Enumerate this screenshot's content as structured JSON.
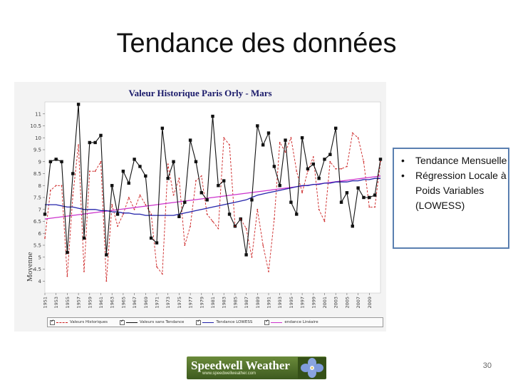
{
  "slide": {
    "title": "Tendance des données",
    "bullets": [
      "Tendance Mensuelle",
      "Régression Locale à Poids Variables (LOWESS)"
    ],
    "page_number": "30"
  },
  "logo": {
    "name": "Speedwell Weather",
    "url": "www.speedwellweather.com"
  },
  "chart_data": {
    "type": "line",
    "title": "Valeur Historique Paris Orly - Mars",
    "xlabel": "",
    "ylabel": "Moyenne",
    "xlim": [
      1951,
      2011
    ],
    "ylim": [
      3.5,
      11.5
    ],
    "yticks": [
      4,
      4.5,
      5,
      5.5,
      6,
      6.5,
      7,
      7.5,
      8,
      8.5,
      9,
      9.5,
      10,
      10.5,
      11
    ],
    "xticks": [
      "1951",
      "1953",
      "1955",
      "1957",
      "1959",
      "1961",
      "1963",
      "1965",
      "1967",
      "1969",
      "1971",
      "1973",
      "1975",
      "1977",
      "1979",
      "1981",
      "1983",
      "1985",
      "1987",
      "1989",
      "1991",
      "1993",
      "1995",
      "1997",
      "1999",
      "2001",
      "2003",
      "2005",
      "2007",
      "2009"
    ],
    "x": [
      1951,
      1952,
      1953,
      1954,
      1955,
      1956,
      1957,
      1958,
      1959,
      1960,
      1961,
      1962,
      1963,
      1964,
      1965,
      1966,
      1967,
      1968,
      1969,
      1970,
      1971,
      1972,
      1973,
      1974,
      1975,
      1976,
      1977,
      1978,
      1979,
      1980,
      1981,
      1982,
      1983,
      1984,
      1985,
      1986,
      1987,
      1988,
      1989,
      1990,
      1991,
      1992,
      1993,
      1994,
      1995,
      1996,
      1997,
      1998,
      1999,
      2000,
      2001,
      2002,
      2003,
      2004,
      2005,
      2006,
      2007,
      2008,
      2009,
      2010,
      2011
    ],
    "grid": false,
    "legend": "bottom",
    "series": [
      {
        "name": "Valeurs Historiques",
        "color": "#cc2222",
        "style": "dashed",
        "values": [
          5.8,
          7.8,
          8.0,
          8.0,
          4.2,
          7.6,
          9.7,
          4.4,
          8.6,
          8.6,
          9.0,
          4.0,
          7.2,
          6.3,
          6.8,
          7.5,
          7.0,
          7.6,
          7.2,
          6.8,
          4.6,
          4.3,
          8.9,
          7.6,
          8.3,
          5.5,
          6.3,
          8.2,
          8.4,
          6.8,
          6.5,
          6.2,
          10.0,
          9.7,
          6.3,
          6.6,
          6.2,
          5.0,
          7.0,
          5.5,
          4.4,
          6.6,
          9.8,
          9.4,
          10.0,
          8.6,
          7.7,
          8.6,
          9.2,
          7.0,
          6.5,
          9.0,
          8.7,
          8.7,
          8.8,
          10.2,
          10.0,
          9.0,
          7.1,
          7.1,
          9.0
        ]
      },
      {
        "name": "Valeurs sans Tendance",
        "color": "#111111",
        "style": "solid-square-markers",
        "values": [
          6.8,
          9.0,
          9.1,
          9.0,
          5.2,
          8.5,
          11.4,
          5.8,
          9.8,
          9.8,
          10.1,
          5.1,
          8.0,
          6.8,
          8.6,
          8.1,
          9.1,
          8.8,
          8.4,
          5.8,
          5.6,
          10.4,
          8.3,
          9.0,
          6.7,
          7.3,
          9.9,
          9.0,
          7.7,
          7.4,
          10.9,
          8.0,
          8.2,
          6.8,
          6.3,
          6.6,
          5.1,
          7.4,
          10.5,
          9.7,
          10.2,
          8.8,
          8.0,
          9.9,
          7.3,
          6.8,
          10.0,
          8.7,
          8.9,
          8.3,
          9.1,
          9.3,
          10.4,
          7.3,
          7.7,
          6.3,
          7.9,
          7.5,
          7.5,
          7.6,
          9.1
        ]
      },
      {
        "name": "Tendance LOWESS",
        "color": "#2222aa",
        "style": "solid",
        "values": [
          7.2,
          7.2,
          7.2,
          7.15,
          7.1,
          7.1,
          7.05,
          7.0,
          7.0,
          7.0,
          6.95,
          6.95,
          6.9,
          6.9,
          6.85,
          6.85,
          6.8,
          6.8,
          6.75,
          6.75,
          6.75,
          6.75,
          6.75,
          6.75,
          6.8,
          6.85,
          6.9,
          6.95,
          7.0,
          7.05,
          7.1,
          7.15,
          7.2,
          7.25,
          7.3,
          7.35,
          7.4,
          7.5,
          7.6,
          7.65,
          7.7,
          7.75,
          7.8,
          7.85,
          7.9,
          7.95,
          8.0,
          8.0,
          8.05,
          8.05,
          8.1,
          8.1,
          8.15,
          8.15,
          8.15,
          8.2,
          8.2,
          8.25,
          8.25,
          8.3,
          8.3
        ]
      },
      {
        "name": "endance Linéaire",
        "color": "#cc33cc",
        "style": "solid",
        "values": [
          6.6,
          6.63,
          6.66,
          6.69,
          6.72,
          6.75,
          6.78,
          6.81,
          6.84,
          6.87,
          6.9,
          6.93,
          6.96,
          6.99,
          7.02,
          7.05,
          7.08,
          7.11,
          7.14,
          7.17,
          7.2,
          7.23,
          7.26,
          7.29,
          7.32,
          7.35,
          7.38,
          7.41,
          7.44,
          7.47,
          7.5,
          7.53,
          7.56,
          7.59,
          7.62,
          7.65,
          7.68,
          7.71,
          7.74,
          7.77,
          7.8,
          7.83,
          7.86,
          7.89,
          7.92,
          7.95,
          7.98,
          8.01,
          8.04,
          8.07,
          8.1,
          8.13,
          8.16,
          8.19,
          8.22,
          8.25,
          8.28,
          8.31,
          8.34,
          8.37,
          8.4
        ]
      }
    ]
  }
}
